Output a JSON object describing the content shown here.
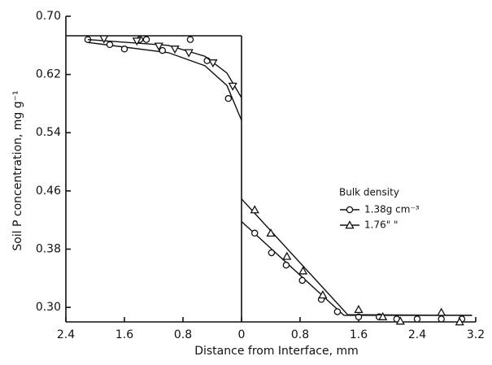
{
  "chart_data": {
    "type": "scatter",
    "x_label": "Distance from Interface, mm",
    "y_label": "Soil P concentration, mg g⁻¹",
    "legend_title": "Bulk density",
    "xlim": [
      -2.4,
      3.2
    ],
    "xticks": [
      {
        "value": -2.4,
        "label": "2.4"
      },
      {
        "value": -1.6,
        "label": "1.6"
      },
      {
        "value": -0.8,
        "label": "0.8"
      },
      0,
      0.8,
      1.6,
      2.4,
      3.2
    ],
    "ylim": [
      0.28,
      0.7
    ],
    "yticks": [
      {
        "value": 0.3,
        "label": "0.30"
      },
      0.38,
      0.46,
      0.54,
      0.62,
      {
        "value": 0.7,
        "label": "0.70"
      }
    ],
    "series": [
      {
        "name": "1.38g cm⁻³",
        "marker": "circle",
        "color": "#111",
        "x": [
          -2.1,
          -1.8,
          -1.6,
          -1.39,
          -1.3,
          -1.08,
          -0.7,
          -0.47,
          -0.18,
          0.18,
          0.41,
          0.61,
          0.83,
          1.09,
          1.31,
          1.6,
          1.88,
          2.12,
          2.4,
          2.73,
          3.01
        ],
        "values": [
          0.668,
          0.661,
          0.655,
          0.668,
          0.668,
          0.653,
          0.668,
          0.639,
          0.587,
          0.402,
          0.375,
          0.358,
          0.337,
          0.311,
          0.294,
          0.287,
          0.287,
          0.284,
          0.284,
          0.284,
          0.284
        ],
        "fit_x": [
          -2.1,
          -1.0,
          -0.5,
          -0.2,
          0,
          null,
          0,
          1.4,
          3.15
        ],
        "fit_values": [
          0.664,
          0.65,
          0.632,
          0.605,
          0.557,
          null,
          0.418,
          0.289,
          0.289
        ]
      },
      {
        "name": "1.76\"  \"",
        "marker": "triangle",
        "color": "#111",
        "x": [
          -1.88,
          -1.43,
          -1.13,
          -0.91,
          -0.72,
          -0.39,
          -0.12,
          0.18,
          0.4,
          0.62,
          0.84,
          1.11,
          1.6,
          1.93,
          2.17,
          2.73,
          2.98
        ],
        "values": [
          0.669,
          0.666,
          0.659,
          0.655,
          0.65,
          0.636,
          0.604,
          0.434,
          0.402,
          0.37,
          0.35,
          0.317,
          0.297,
          0.287,
          0.281,
          0.293,
          0.28
        ],
        "fit_x": [
          -2.1,
          -1.0,
          -0.5,
          -0.2,
          0,
          null,
          0,
          1.45,
          3.15
        ],
        "fit_values": [
          0.668,
          0.66,
          0.645,
          0.622,
          0.588,
          null,
          0.449,
          0.29,
          0.289
        ]
      }
    ]
  }
}
